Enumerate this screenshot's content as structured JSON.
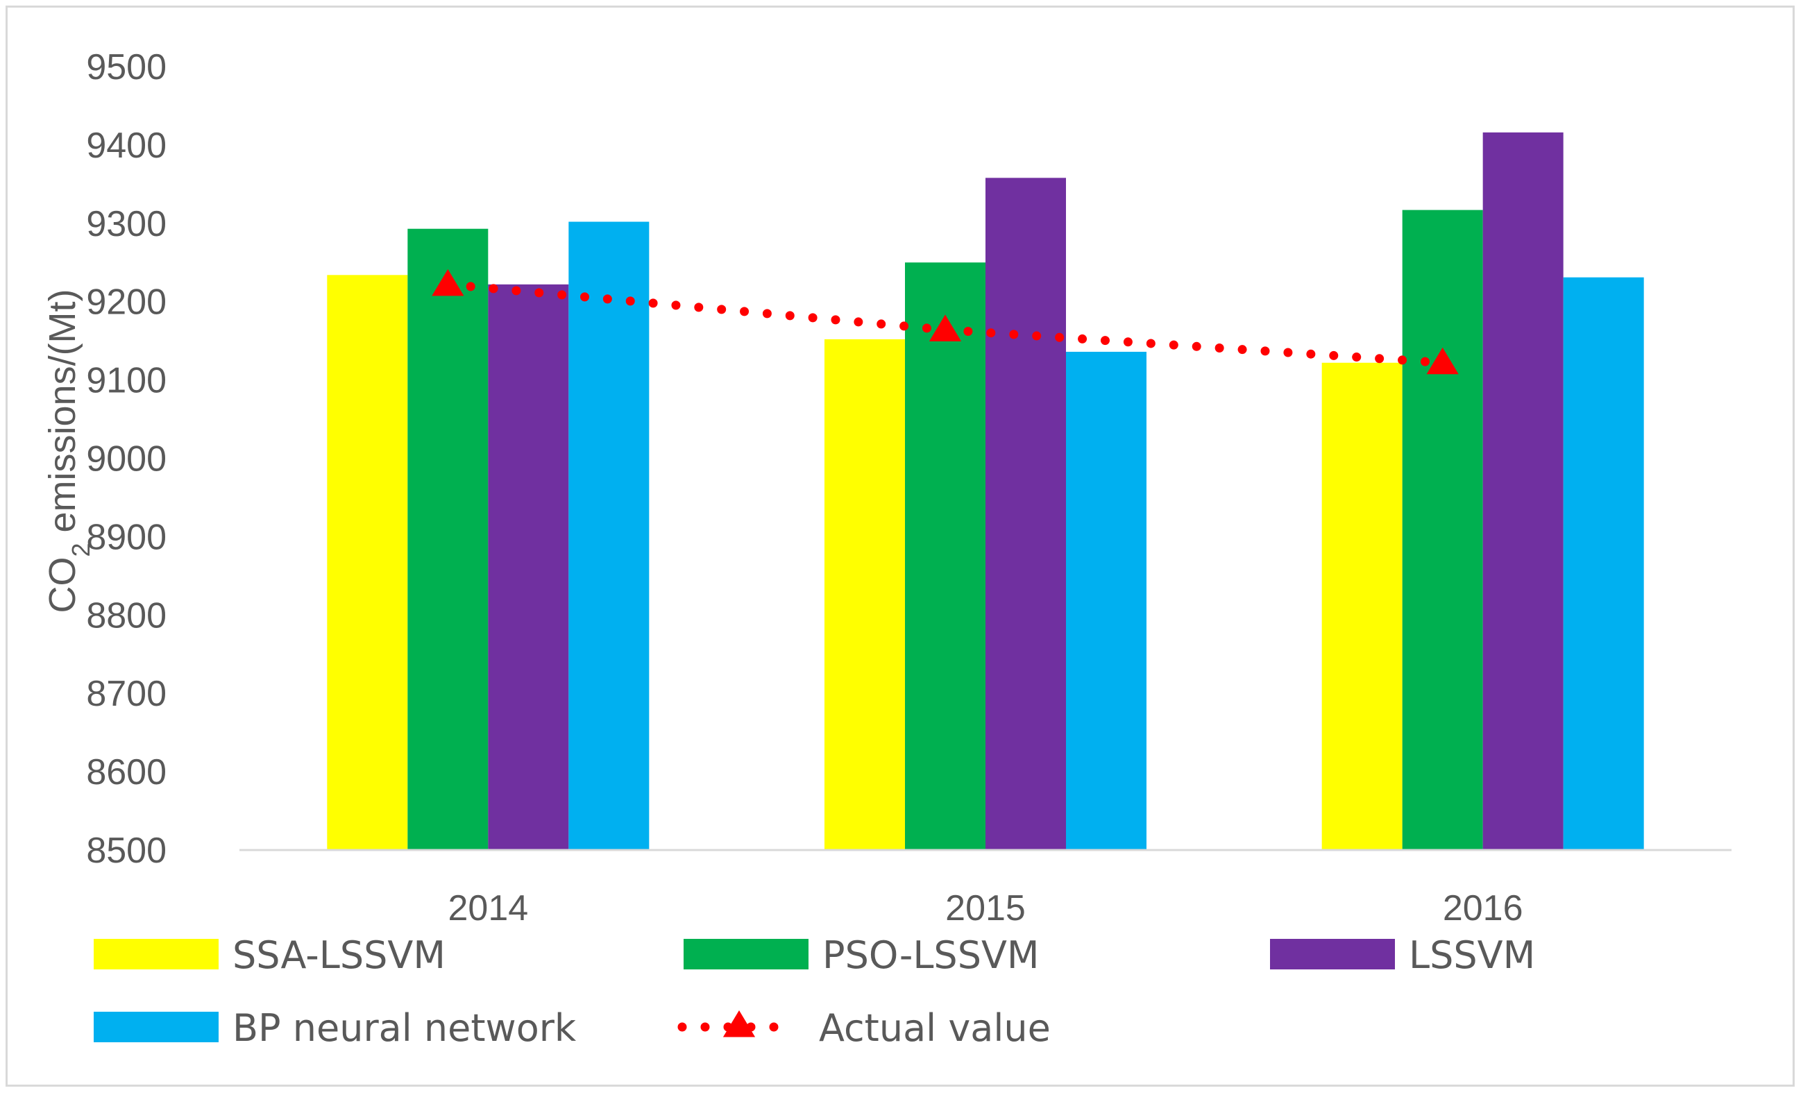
{
  "chart_data": {
    "type": "bar",
    "title": "",
    "xlabel": "",
    "ylabel": {
      "prefix": "CO",
      "sub": "2",
      "suffix": " emissions/(Mt)"
    },
    "ylim": [
      8500,
      9500
    ],
    "ytick_step": 100,
    "grid": false,
    "categories": [
      "2014",
      "2015",
      "2016"
    ],
    "series": [
      {
        "name": "SSA-LSSVM",
        "color": "#FFFF00",
        "values": [
          9234,
          9152,
          9122
        ]
      },
      {
        "name": "PSO-LSSVM",
        "color": "#00B050",
        "values": [
          9293,
          9250,
          9317
        ]
      },
      {
        "name": "LSSVM",
        "color": "#7030A0",
        "values": [
          9222,
          9358,
          9416
        ]
      },
      {
        "name": "BP neural network",
        "color": "#00B0F0",
        "values": [
          9302,
          9136,
          9231
        ]
      }
    ],
    "line_series": {
      "name": "Actual value",
      "color": "#FF0000",
      "values": [
        9222,
        9164,
        9122
      ],
      "style": "dotted",
      "marker": "triangle"
    },
    "legend_position": "bottom"
  }
}
